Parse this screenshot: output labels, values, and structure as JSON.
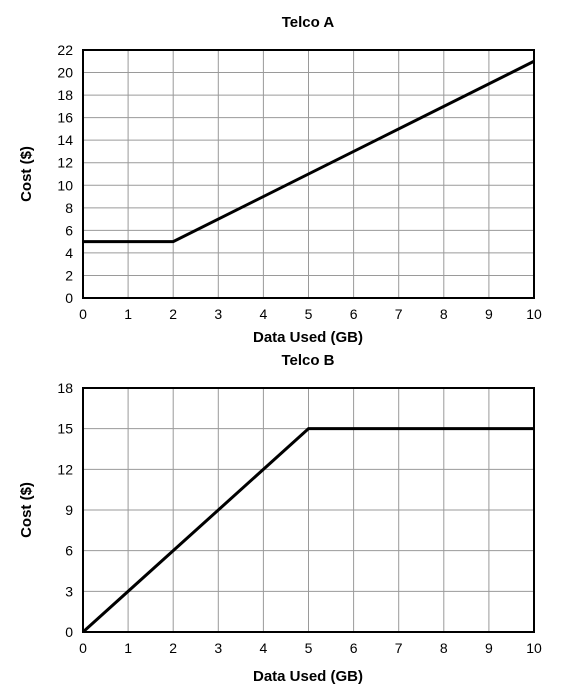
{
  "chart_data": [
    {
      "type": "line",
      "title": "Telco A",
      "xlabel": "Data Used (GB)",
      "ylabel": "Cost ($)",
      "xlim": [
        0,
        10
      ],
      "ylim": [
        0,
        22
      ],
      "xticks": [
        0,
        1,
        2,
        3,
        4,
        5,
        6,
        7,
        8,
        9,
        10
      ],
      "yticks": [
        0,
        2,
        4,
        6,
        8,
        10,
        12,
        14,
        16,
        18,
        20,
        22
      ],
      "grid": true,
      "series": [
        {
          "points": [
            [
              0,
              5
            ],
            [
              2,
              5
            ],
            [
              10,
              21
            ]
          ]
        }
      ]
    },
    {
      "type": "line",
      "title": "Telco B",
      "xlabel": "Data Used (GB)",
      "ylabel": "Cost ($)",
      "xlim": [
        0,
        10
      ],
      "ylim": [
        0,
        18
      ],
      "xticks": [
        0,
        1,
        2,
        3,
        4,
        5,
        6,
        7,
        8,
        9,
        10
      ],
      "yticks": [
        0,
        3,
        6,
        9,
        12,
        15,
        18
      ],
      "grid": true,
      "series": [
        {
          "points": [
            [
              0,
              0
            ],
            [
              5,
              15
            ],
            [
              10,
              15
            ]
          ]
        }
      ]
    }
  ]
}
